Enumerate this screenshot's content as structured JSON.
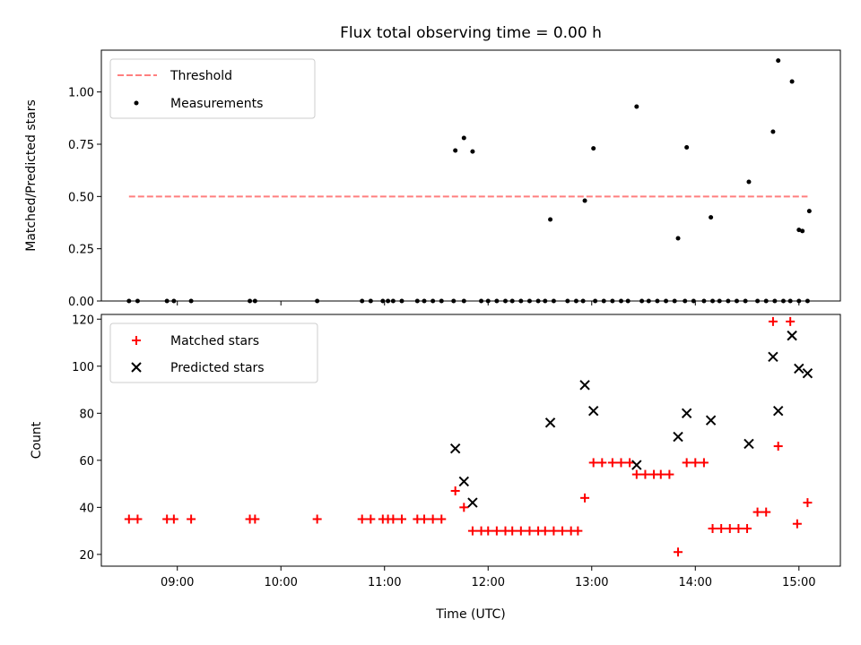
{
  "chart_data": [
    {
      "type": "scatter",
      "title": "Flux total observing time = 0.00 h",
      "xlabel": "",
      "ylabel": "Matched/Predicted stars",
      "ylim": [
        0,
        1.2
      ],
      "xlim": [
        "08:16",
        "15:24"
      ],
      "y_ticks": [
        0.0,
        0.25,
        0.5,
        0.75,
        1.0
      ],
      "y_tick_labels": [
        "0.00",
        "0.25",
        "0.50",
        "0.75",
        "1.00"
      ],
      "legend": "top-left",
      "threshold": {
        "name": "Threshold",
        "value": 0.5,
        "x_range": [
          "08:32",
          "15:05"
        ],
        "color": "#ff7f7f",
        "style": "dashed"
      },
      "series": [
        {
          "name": "Measurements",
          "color": "#000000",
          "marker": "dot",
          "x": [
            "08:32",
            "08:37",
            "08:54",
            "08:58",
            "09:08",
            "09:42",
            "09:45",
            "10:21",
            "10:47",
            "10:52",
            "10:59",
            "11:02",
            "11:05",
            "11:10",
            "11:19",
            "11:23",
            "11:28",
            "11:33",
            "11:40",
            "11:46",
            "11:56",
            "12:00",
            "12:05",
            "12:10",
            "12:14",
            "12:19",
            "12:24",
            "12:29",
            "12:33",
            "12:38",
            "12:46",
            "12:51",
            "12:55",
            "13:02",
            "13:07",
            "13:12",
            "13:17",
            "13:21",
            "13:29",
            "13:33",
            "13:38",
            "13:43",
            "13:48",
            "13:54",
            "13:59",
            "14:05",
            "14:10",
            "14:14",
            "14:19",
            "14:24",
            "14:29",
            "14:36",
            "14:41",
            "14:46",
            "14:51",
            "14:55",
            "15:00",
            "15:05",
            "11:41",
            "11:46",
            "11:51",
            "12:36",
            "12:56",
            "13:01",
            "13:26",
            "13:50",
            "13:55",
            "14:09",
            "14:31",
            "14:45",
            "15:00",
            "15:02",
            "15:06",
            "14:48",
            "14:56"
          ],
          "y": [
            0,
            0,
            0,
            0,
            0,
            0,
            0,
            0,
            0,
            0,
            0,
            0,
            0,
            0,
            0,
            0,
            0,
            0,
            0,
            0,
            0,
            0,
            0,
            0,
            0,
            0,
            0,
            0,
            0,
            0,
            0,
            0,
            0,
            0,
            0,
            0,
            0,
            0,
            0,
            0,
            0,
            0,
            0,
            0,
            0,
            0,
            0,
            0,
            0,
            0,
            0,
            0,
            0,
            0,
            0,
            0,
            0,
            0,
            0.72,
            0.78,
            0.715,
            0.39,
            0.48,
            0.73,
            0.93,
            0.3,
            0.735,
            0.4,
            0.57,
            0.81,
            0.34,
            0.335,
            0.43,
            1.15,
            1.05
          ]
        }
      ]
    },
    {
      "type": "scatter",
      "title": "",
      "xlabel": "Time (UTC)",
      "ylabel": "Count",
      "ylim": [
        15,
        122
      ],
      "xlim": [
        "08:16",
        "15:24"
      ],
      "y_ticks": [
        20,
        40,
        60,
        80,
        100,
        120
      ],
      "x_ticks": [
        "09:00",
        "10:00",
        "11:00",
        "12:00",
        "13:00",
        "14:00",
        "15:00"
      ],
      "legend": "top-left",
      "series": [
        {
          "name": "Matched stars",
          "color": "#ff0000",
          "marker": "plus",
          "x": [
            "08:32",
            "08:37",
            "08:54",
            "08:58",
            "09:08",
            "09:42",
            "09:45",
            "10:21",
            "10:47",
            "10:52",
            "10:59",
            "11:02",
            "11:05",
            "11:10",
            "11:19",
            "11:23",
            "11:28",
            "11:33",
            "11:41",
            "11:46",
            "11:51",
            "11:56",
            "12:00",
            "12:05",
            "12:10",
            "12:14",
            "12:19",
            "12:24",
            "12:29",
            "12:33",
            "12:38",
            "12:43",
            "12:48",
            "12:52",
            "12:56",
            "13:01",
            "13:06",
            "13:12",
            "13:17",
            "13:22",
            "13:26",
            "13:31",
            "13:36",
            "13:40",
            "13:45",
            "13:50",
            "13:55",
            "14:00",
            "14:05",
            "14:10",
            "14:15",
            "14:20",
            "14:25",
            "14:30",
            "14:36",
            "14:41",
            "14:45",
            "14:48",
            "14:55",
            "14:59",
            "15:05"
          ],
          "y": [
            35,
            35,
            35,
            35,
            35,
            35,
            35,
            35,
            35,
            35,
            35,
            35,
            35,
            35,
            35,
            35,
            35,
            35,
            47,
            40,
            30,
            30,
            30,
            30,
            30,
            30,
            30,
            30,
            30,
            30,
            30,
            30,
            30,
            30,
            44,
            59,
            59,
            59,
            59,
            59,
            54,
            54,
            54,
            54,
            54,
            21,
            59,
            59,
            59,
            31,
            31,
            31,
            31,
            31,
            38,
            38,
            119,
            66,
            119,
            33,
            42
          ]
        },
        {
          "name": "Predicted stars",
          "color": "#000000",
          "marker": "x",
          "x": [
            "11:41",
            "11:46",
            "11:51",
            "12:36",
            "12:56",
            "13:01",
            "13:26",
            "13:50",
            "13:55",
            "14:09",
            "14:31",
            "14:45",
            "14:48",
            "14:56",
            "15:00",
            "15:05"
          ],
          "y": [
            65,
            51,
            42,
            76,
            92,
            81,
            58,
            70,
            80,
            77,
            67,
            104,
            81,
            113,
            99,
            97
          ]
        }
      ]
    }
  ]
}
